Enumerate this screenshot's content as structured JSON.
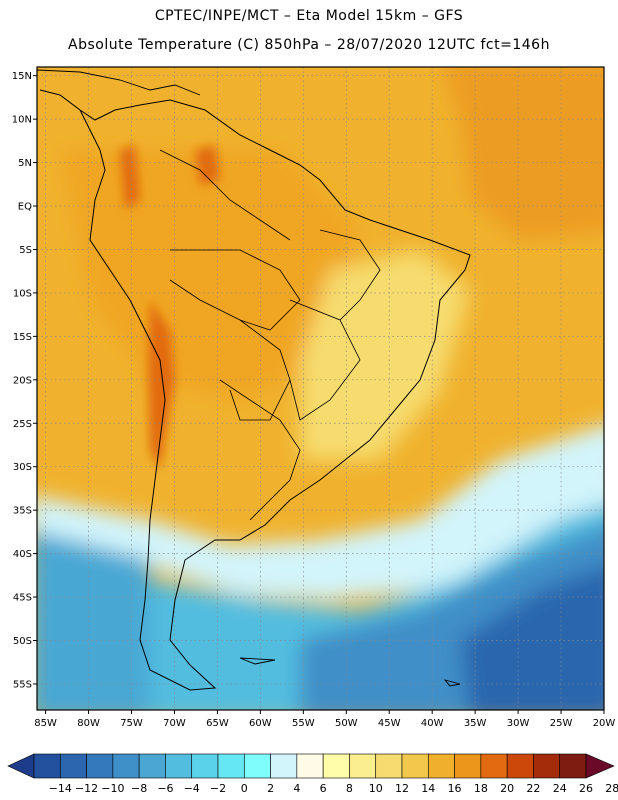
{
  "header": {
    "line1": "CPTEC/INPE/MCT –  Eta Model 15km – GFS",
    "line2": "Absolute Temperature (C) 850hPa – 28/07/2020 12UTC fct=146h"
  },
  "map": {
    "lat_range": [
      -58,
      16
    ],
    "lon_range": [
      -86,
      -20
    ],
    "lat_ticks": [
      "15N",
      "10N",
      "5N",
      "EQ",
      "5S",
      "10S",
      "15S",
      "20S",
      "25S",
      "30S",
      "35S",
      "40S",
      "45S",
      "50S",
      "55S"
    ],
    "lat_values": [
      15,
      10,
      5,
      0,
      -5,
      -10,
      -15,
      -20,
      -25,
      -30,
      -35,
      -40,
      -45,
      -50,
      -55
    ],
    "lon_ticks": [
      "85W",
      "80W",
      "75W",
      "70W",
      "65W",
      "60W",
      "55W",
      "50W",
      "45W",
      "40W",
      "35W",
      "30W",
      "25W",
      "20W"
    ],
    "lon_values": [
      -85,
      -80,
      -75,
      -70,
      -65,
      -60,
      -55,
      -50,
      -45,
      -40,
      -35,
      -30,
      -25,
      -20
    ],
    "gridlines": true
  },
  "colorbar": {
    "labels": [
      "-14",
      "-12",
      "-10",
      "-8",
      "-6",
      "-4",
      "-2",
      "0",
      "2",
      "4",
      "6",
      "8",
      "10",
      "12",
      "14",
      "16",
      "18",
      "20",
      "22",
      "24",
      "26",
      "28"
    ],
    "colors": [
      "#1e3c8c",
      "#24519e",
      "#2c66ae",
      "#3479bb",
      "#3f8fc8",
      "#4aa7d4",
      "#53bde0",
      "#5ad3ea",
      "#66e8f4",
      "#7ffcfc",
      "#d2f4fb",
      "#fffbe6",
      "#fffcaa",
      "#fbee8e",
      "#f6dc6e",
      "#f2c84c",
      "#f0b02c",
      "#ec961c",
      "#e26a10",
      "#cc480a",
      "#a42c0a",
      "#7e1c12",
      "#6a0a28"
    ]
  },
  "field": {
    "background": "#f0b22e",
    "regions": [
      {
        "name": "warm-north-ocean",
        "color": "#ec9c20"
      },
      {
        "name": "amazon",
        "color": "#f0a624"
      },
      {
        "name": "andes-peaks",
        "color": "#e26a10"
      },
      {
        "name": "brazil-east",
        "color": "#f6dc6e"
      },
      {
        "name": "south-atlantic-cold",
        "color": "#2c66ae"
      },
      {
        "name": "south-cold-mid",
        "color": "#3f8fc8"
      },
      {
        "name": "south-cool",
        "color": "#53bde0"
      },
      {
        "name": "front-band",
        "color": "#d2f4fb"
      },
      {
        "name": "pacific-cool",
        "color": "#4aa7d4"
      }
    ]
  }
}
